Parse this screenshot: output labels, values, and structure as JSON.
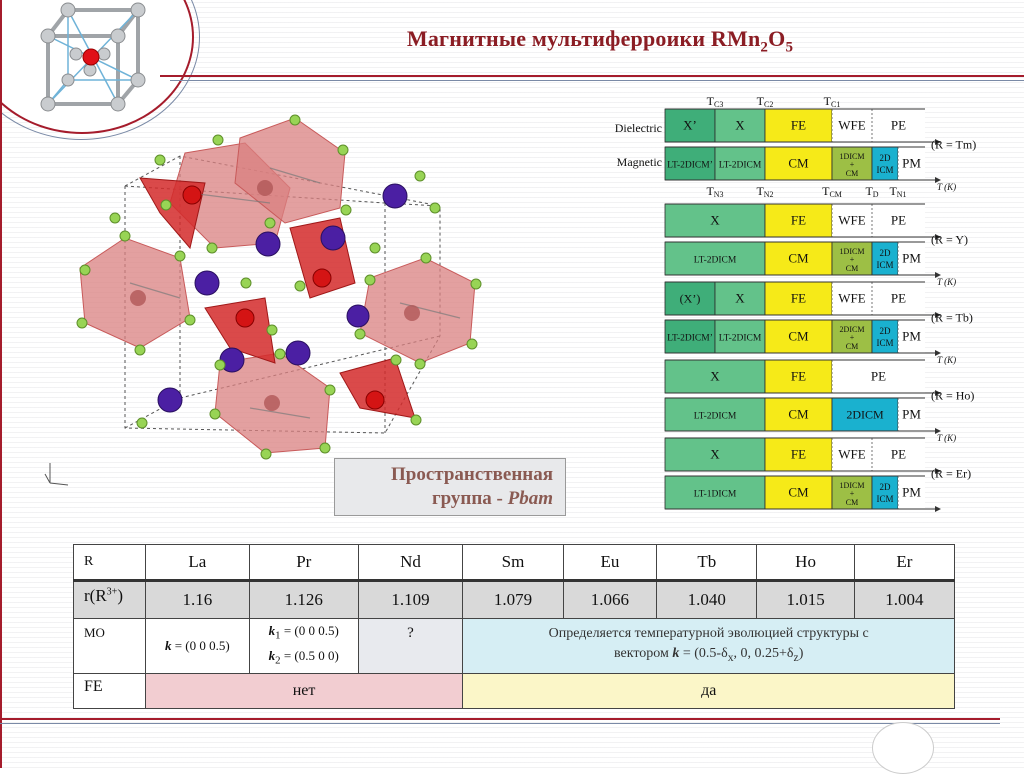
{
  "slide": {
    "title_main": "Магнитные мультиферроики RMn",
    "title_sub1": "2",
    "title_mid": "O",
    "title_sub2": "5"
  },
  "space_group": {
    "line1": "Пространственная",
    "line2_prefix": "группа - ",
    "line2_symbol": "Pbam"
  },
  "phase_diagram": {
    "row_label_dielectric": "Dielectric",
    "row_label_magnetic": "Magnetic",
    "axis_label": "T (K)",
    "top_ticks": [
      "T",
      "T",
      "T"
    ],
    "top_tick_subs": [
      "C3",
      "C2",
      "C1"
    ],
    "bottom_ticks": [
      "T",
      "T",
      "T",
      "T",
      "T"
    ],
    "bottom_tick_subs": [
      "N3",
      "N2",
      "CM",
      "D",
      "N1"
    ],
    "groups": [
      {
        "label": "(R = Tm)",
        "dielectric": [
          "X’",
          "X",
          "FE",
          "WFE",
          "PE"
        ],
        "magnetic": [
          "LT-2DICM’",
          "LT-2DICM",
          "CM",
          "1DICM + CM",
          "2D ICM",
          "PM"
        ]
      },
      {
        "label": "(R = Y)",
        "dielectric": [
          "X",
          "FE",
          "WFE",
          "PE"
        ],
        "magnetic": [
          "LT-2DICM",
          "CM",
          "1DICM + CM",
          "2D ICM",
          "PM"
        ]
      },
      {
        "label": "(R = Tb)",
        "dielectric": [
          "(X’)",
          "X",
          "FE",
          "WFE",
          "PE"
        ],
        "magnetic": [
          "LT-2DICM’",
          "LT-2DICM",
          "CM",
          "2DICM + CM",
          "2D ICM",
          "PM"
        ]
      },
      {
        "label": "(R = Ho)",
        "dielectric": [
          "X",
          "FE",
          "PE"
        ],
        "magnetic": [
          "LT-2DICM",
          "CM",
          "2DICM",
          "PM"
        ]
      },
      {
        "label": "(R = Er)",
        "dielectric": [
          "X",
          "FE",
          "WFE",
          "PE"
        ],
        "magnetic": [
          "LT-1DICM",
          "CM",
          "1DICM + CM",
          "2D ICM",
          "PM"
        ]
      }
    ]
  },
  "colors": {
    "accent_red": "#a51c2c",
    "green_dark": "#3fae79",
    "green_mid": "#63c28a",
    "yellow": "#f6ea18",
    "olive": "#9dbf45",
    "cyan": "#1ab1cf"
  },
  "structure_icons": {
    "unit_cell": "cube-icon",
    "crystal": "crystal-structure-icon"
  },
  "table": {
    "header_label": "R",
    "elements": [
      "La",
      "Pr",
      "Nd",
      "Sm",
      "Eu",
      "Tb",
      "Ho",
      "Er"
    ],
    "radius_label": "r(R",
    "radius_sup": "3+",
    "radius_close": ")",
    "radii": [
      "1.16",
      "1.126",
      "1.109",
      "1.079",
      "1.066",
      "1.040",
      "1.015",
      "1.004"
    ],
    "mo_label": "MO",
    "mo_la": "= (0 0 0.5)",
    "mo_pr_1": "= (0 0 0.5)",
    "mo_pr_2": "= (0.5 0 0)",
    "k_symbol": "k",
    "k1_sub": "1",
    "k2_sub": "2",
    "mo_nd": "?",
    "mo_rest_line1": "Определяется температурной эволюцией  структуры с",
    "mo_rest_line2_pre": "вектором ",
    "mo_rest_line2_post": " = (0.5-δ",
    "mo_rest_x": "x",
    "mo_rest_mid": ", 0, 0.25+δ",
    "mo_rest_z": "z",
    "mo_rest_end": ")",
    "fe_label": "FE",
    "fe_no": "нет",
    "fe_yes": "да"
  }
}
